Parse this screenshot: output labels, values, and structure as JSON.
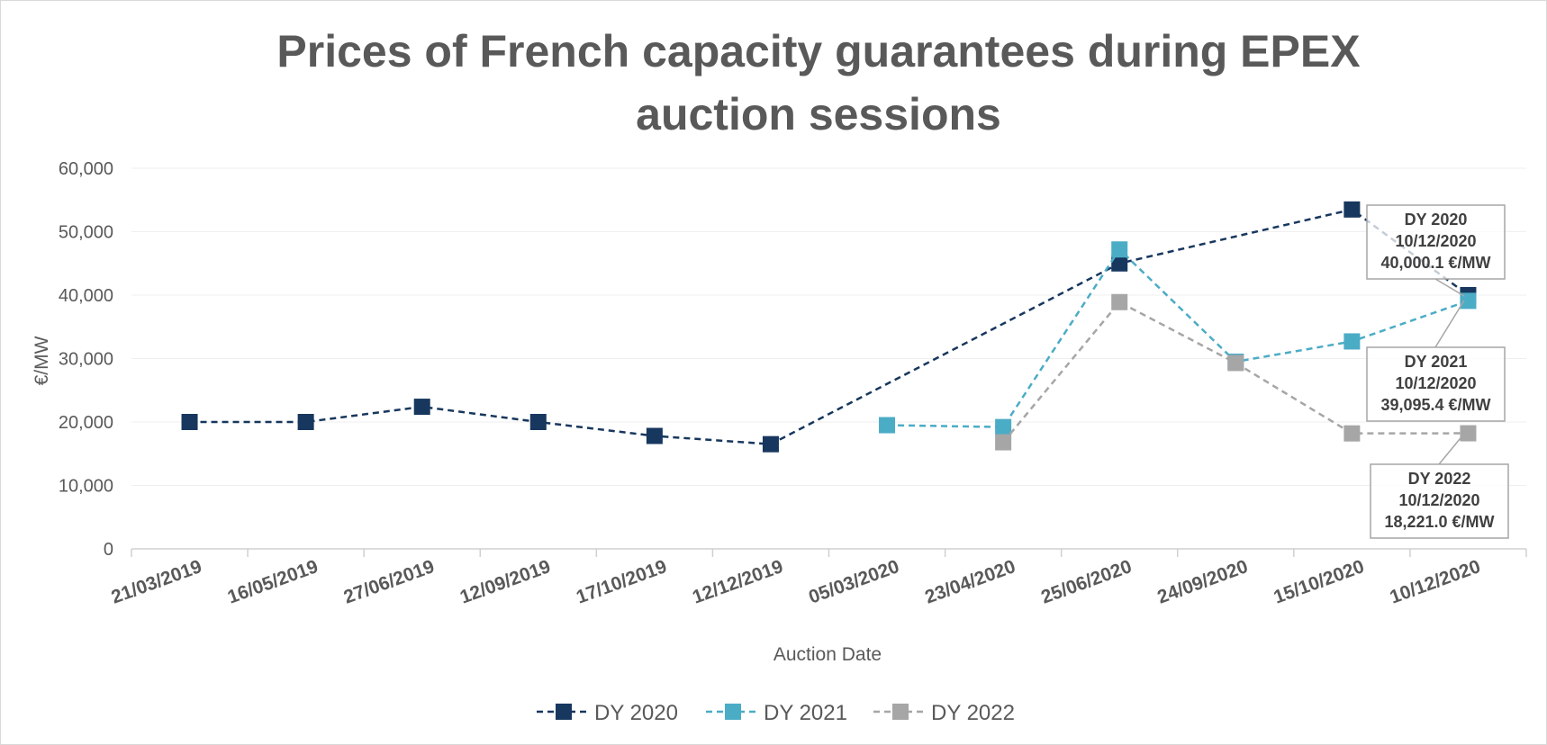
{
  "chart_data": {
    "type": "line",
    "title_lines": [
      "Prices of French capacity guarantees during EPEX",
      "auction sessions"
    ],
    "xlabel": "Auction Date",
    "ylabel": "€/MW",
    "ylim": [
      0,
      60000
    ],
    "yticks": [
      0,
      10000,
      20000,
      30000,
      40000,
      50000,
      60000
    ],
    "ytick_labels": [
      "0",
      "10,000",
      "20,000",
      "30,000",
      "40,000",
      "50,000",
      "60,000"
    ],
    "categories": [
      "21/03/2019",
      "16/05/2019",
      "27/06/2019",
      "12/09/2019",
      "17/10/2019",
      "12/12/2019",
      "05/03/2020",
      "23/04/2020",
      "25/06/2020",
      "24/09/2020",
      "15/10/2020",
      "10/12/2020"
    ],
    "series": [
      {
        "name": "DY 2020",
        "color": "#17375e",
        "values": [
          20000,
          20000,
          22400,
          20000,
          17800,
          16500,
          null,
          null,
          45000,
          null,
          53500,
          40000.1
        ]
      },
      {
        "name": "DY 2021",
        "color": "#4bacc6",
        "values": [
          null,
          null,
          null,
          null,
          null,
          null,
          19500,
          19200,
          47200,
          29500,
          32700,
          39095.4
        ]
      },
      {
        "name": "DY 2022",
        "color": "#a6a6a6",
        "values": [
          null,
          null,
          null,
          null,
          null,
          null,
          null,
          16800,
          38900,
          29300,
          18200,
          18221.0
        ]
      }
    ],
    "legend_position": "bottom",
    "annotations": [
      {
        "series": "DY 2020",
        "lines": [
          "DY 2020",
          "10/12/2020",
          "40,000.1 €/MW"
        ]
      },
      {
        "series": "DY 2021",
        "lines": [
          "DY 2021",
          "10/12/2020",
          "39,095.4 €/MW"
        ]
      },
      {
        "series": "DY 2022",
        "lines": [
          "DY 2022",
          "10/12/2020",
          "18,221.0 €/MW"
        ]
      }
    ]
  }
}
